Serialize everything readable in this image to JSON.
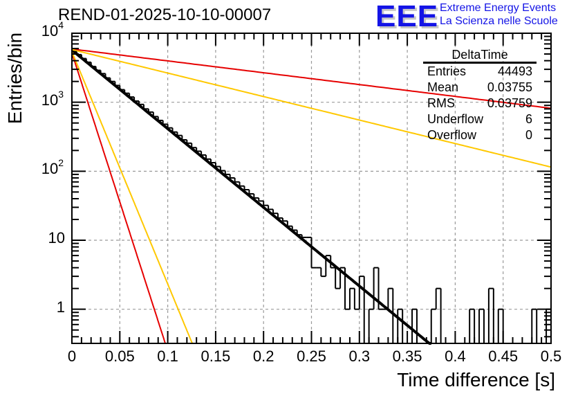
{
  "header": {
    "title": "REND-01-2025-10-10-00007",
    "logo": "EEE",
    "logo_line1": "Extreme Energy Events",
    "logo_line2": "La Scienza nelle Scuole"
  },
  "stats_box": {
    "name": "DeltaTime",
    "rows": [
      {
        "label": "Entries",
        "value": "44493"
      },
      {
        "label": "Mean",
        "value": "0.03755"
      },
      {
        "label": "RMS",
        "value": "0.03759"
      },
      {
        "label": "Underflow",
        "value": "6"
      },
      {
        "label": "Overflow",
        "value": "0"
      }
    ]
  },
  "colors": {
    "histogram": "#000000",
    "fit": "#000000",
    "bound_red": "#e60000",
    "bound_yellow": "#ffc800",
    "grid": "#999999"
  },
  "chart_data": {
    "type": "bar",
    "title": "REND-01-2025-10-10-00007",
    "xlabel": "Time difference [s]",
    "ylabel": "Entries/bin",
    "xlim": [
      0,
      0.5
    ],
    "ylim": [
      0.32,
      10000
    ],
    "yscale": "log",
    "grid": true,
    "legend": "top-right",
    "x_ticks": [
      "0",
      "0.05",
      "0.1",
      "0.15",
      "0.2",
      "0.25",
      "0.3",
      "0.35",
      "0.4",
      "0.45",
      "0.5"
    ],
    "x_tick_values": [
      0,
      0.05,
      0.1,
      0.15,
      0.2,
      0.25,
      0.3,
      0.35,
      0.4,
      0.45,
      0.5
    ],
    "y_ticks": [
      {
        "value": 1,
        "base": "1",
        "exp": ""
      },
      {
        "value": 10,
        "base": "10",
        "exp": ""
      },
      {
        "value": 100,
        "base": "10",
        "exp": "2"
      },
      {
        "value": 1000,
        "base": "10",
        "exp": "3"
      },
      {
        "value": 10000,
        "base": "10",
        "exp": "4"
      }
    ],
    "bin_width": 0.005,
    "bins": [
      5400,
      4900,
      4300,
      3800,
      3300,
      2900,
      2600,
      2250,
      2000,
      1750,
      1520,
      1350,
      1190,
      1040,
      930,
      800,
      720,
      620,
      545,
      480,
      425,
      370,
      330,
      285,
      255,
      220,
      195,
      172,
      150,
      133,
      117,
      102,
      90,
      80,
      70,
      61,
      54,
      47,
      41,
      37,
      32,
      28,
      24.5,
      21,
      19,
      16,
      14,
      12,
      11,
      11,
      4,
      4,
      3,
      6,
      4,
      2,
      4,
      1,
      2,
      1,
      3,
      0,
      1,
      4,
      1,
      1,
      2,
      0,
      1,
      0,
      0,
      1,
      0,
      0,
      0,
      1,
      2,
      0,
      0,
      0,
      0,
      0,
      0,
      1,
      0,
      1,
      0,
      2,
      0,
      1,
      0,
      0,
      0,
      0,
      0,
      0,
      1,
      0,
      0,
      1
    ],
    "series": [
      {
        "name": "fit",
        "color": "#000000",
        "type": "exp",
        "amplitude": 5700,
        "tau": 0.0381,
        "xmax": 0.375
      },
      {
        "name": "upper-bound-red",
        "color": "#e60000",
        "type": "exp",
        "amplitude": 5900,
        "tau": 0.253,
        "xmax": 0.5
      },
      {
        "name": "upper-bound-yellow",
        "color": "#ffc800",
        "type": "exp",
        "amplitude": 5800,
        "tau": 0.1275,
        "xmax": 0.5
      },
      {
        "name": "lower-bound-red",
        "color": "#e60000",
        "type": "exp",
        "amplitude": 5200,
        "tau": 0.01005,
        "xmax": 0.1
      },
      {
        "name": "lower-bound-yellow",
        "color": "#ffc800",
        "type": "exp",
        "amplitude": 5400,
        "tau": 0.0129,
        "xmax": 0.127
      }
    ]
  }
}
